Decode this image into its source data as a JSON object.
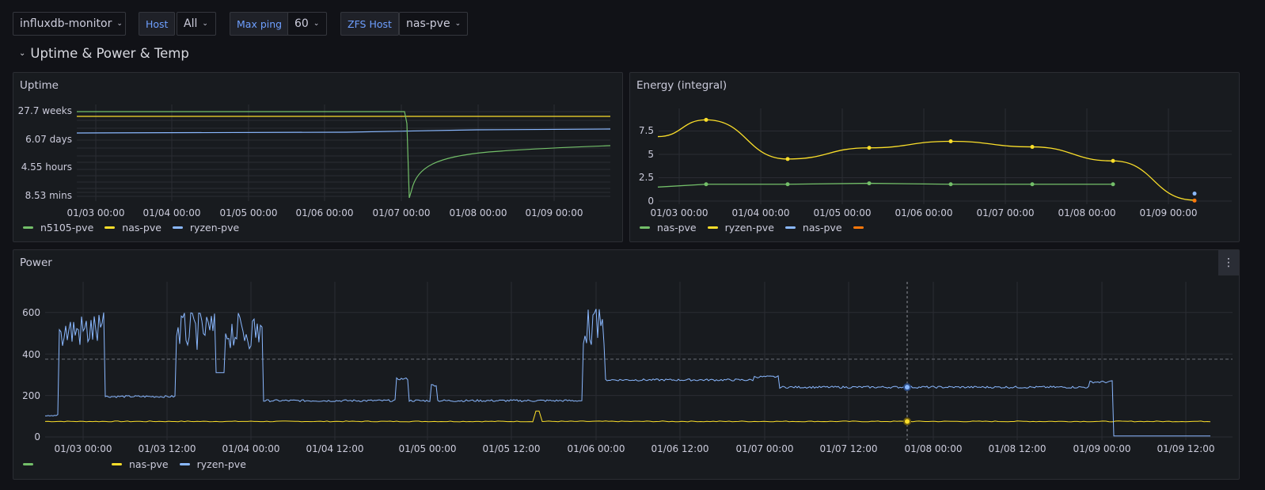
{
  "toolbar": {
    "datasource": "influxdb-monitor",
    "vars": [
      {
        "label": "Host",
        "value": "All"
      },
      {
        "label": "Max ping",
        "value": "60"
      },
      {
        "label": "ZFS Host",
        "value": "nas-pve"
      }
    ]
  },
  "row_title": "Uptime & Power & Temp",
  "colors": {
    "green": "#73bf69",
    "yellow": "#fade2a",
    "blue": "#8ab8ff",
    "orange": "#ff780a"
  },
  "uptime": {
    "title": "Uptime",
    "y_ticks": [
      "27.7 weeks",
      "6.07 days",
      "4.55 hours",
      "8.53 mins"
    ],
    "x_ticks": [
      "01/03 00:00",
      "01/04 00:00",
      "01/05 00:00",
      "01/06 00:00",
      "01/07 00:00",
      "01/08 00:00",
      "01/09 00:00"
    ],
    "legend": [
      {
        "name": "n5105-pve",
        "color": "#73bf69"
      },
      {
        "name": "nas-pve",
        "color": "#fade2a"
      },
      {
        "name": "ryzen-pve",
        "color": "#8ab8ff"
      }
    ]
  },
  "energy": {
    "title": "Energy (integral)",
    "y_ticks": [
      "7.5",
      "5",
      "2.5",
      "0"
    ],
    "x_ticks": [
      "01/03 00:00",
      "01/04 00:00",
      "01/05 00:00",
      "01/06 00:00",
      "01/07 00:00",
      "01/08 00:00",
      "01/09 00:00"
    ],
    "legend": [
      {
        "name": "nas-pve",
        "color": "#73bf69"
      },
      {
        "name": "ryzen-pve",
        "color": "#fade2a"
      },
      {
        "name": "nas-pve",
        "color": "#8ab8ff"
      },
      {
        "name": "",
        "color": "#ff780a"
      }
    ],
    "series": {
      "yellow": [
        8.7,
        4.5,
        5.7,
        6.4,
        5.8,
        4.3,
        0.1
      ],
      "green": [
        1.8,
        1.8,
        1.9,
        1.8,
        1.8,
        1.8
      ]
    }
  },
  "power": {
    "title": "Power",
    "menu_icon": "ellipsis-vertical-icon",
    "y_ticks": [
      "600",
      "400",
      "200",
      "0"
    ],
    "x_ticks": [
      "01/03 00:00",
      "01/03 12:00",
      "01/04 00:00",
      "01/04 12:00",
      "01/05 00:00",
      "01/05 12:00",
      "01/06 00:00",
      "01/06 12:00",
      "01/07 00:00",
      "01/07 12:00",
      "01/08 00:00",
      "01/08 12:00",
      "01/09 00:00",
      "01/09 12:00"
    ],
    "threshold": 375,
    "legend": [
      {
        "name": "",
        "color": "#73bf69"
      },
      {
        "name": "nas-pve",
        "color": "#fade2a"
      },
      {
        "name": "ryzen-pve",
        "color": "#8ab8ff"
      }
    ]
  }
}
